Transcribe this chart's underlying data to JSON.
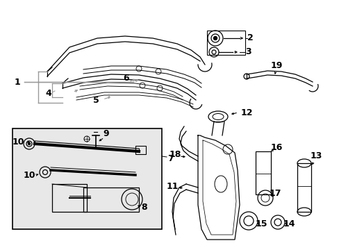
{
  "bg_color": "#ffffff",
  "line_color": "#000000",
  "gray_color": "#999999",
  "box_bg": "#e8e8e8",
  "fig_width": 4.89,
  "fig_height": 3.6,
  "dpi": 100
}
